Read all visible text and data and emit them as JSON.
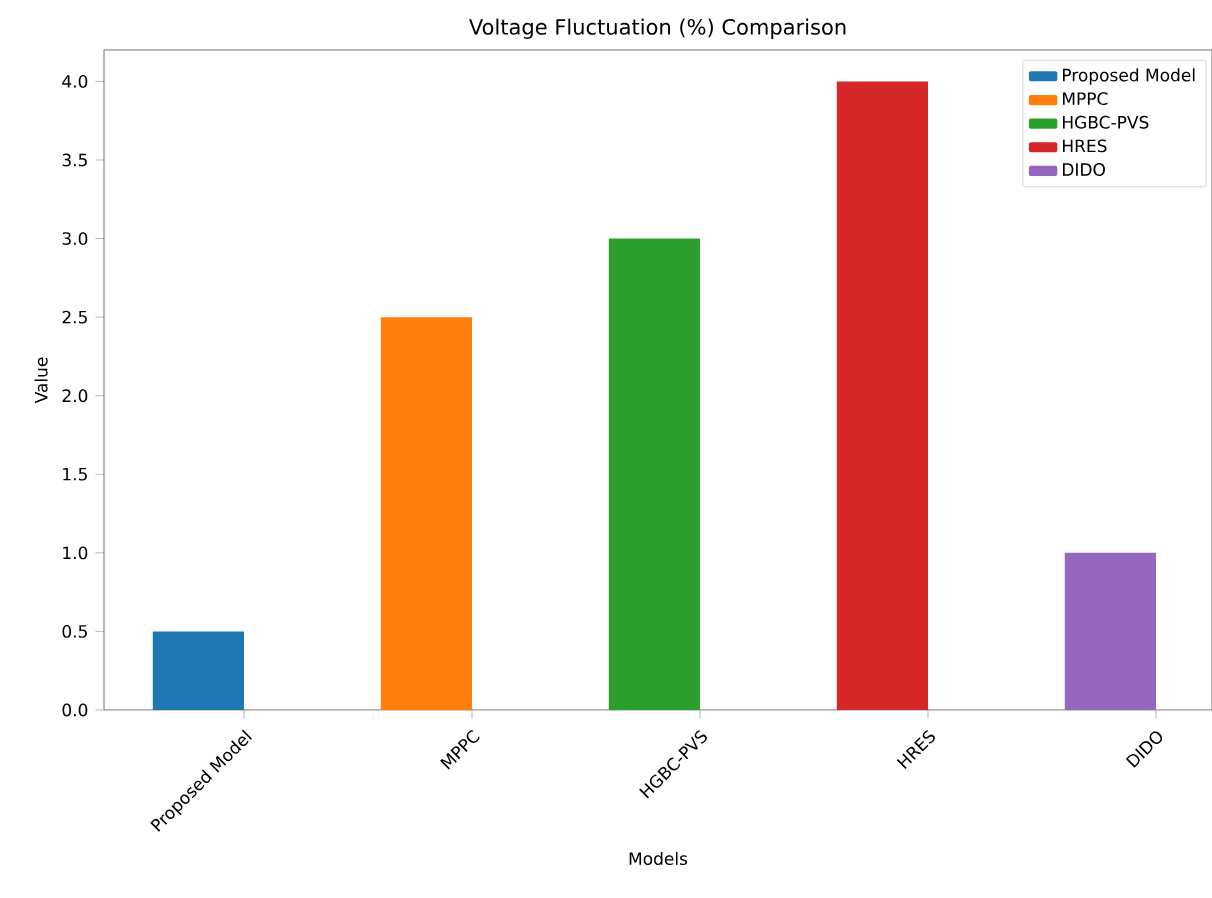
{
  "chart_data": {
    "type": "bar",
    "title": "Voltage Fluctuation (%) Comparison",
    "xlabel": "Models",
    "ylabel": "Value",
    "categories": [
      "Proposed Model",
      "MPPC",
      "HGBC-PVS",
      "HRES",
      "DIDO"
    ],
    "series": [
      {
        "name": "Proposed Model",
        "color": "#1f77b4",
        "values": [
          0.5,
          null,
          null,
          null,
          null
        ]
      },
      {
        "name": "MPPC",
        "color": "#ff7f0e",
        "values": [
          null,
          2.5,
          null,
          null,
          null
        ]
      },
      {
        "name": "HGBC-PVS",
        "color": "#2ca02c",
        "values": [
          null,
          null,
          3.0,
          null,
          null
        ]
      },
      {
        "name": "HRES",
        "color": "#d62728",
        "values": [
          null,
          null,
          null,
          4.0,
          null
        ]
      },
      {
        "name": "DIDO",
        "color": "#9467bd",
        "values": [
          null,
          null,
          null,
          null,
          1.0
        ]
      }
    ],
    "ylim": [
      0,
      4.2
    ],
    "yticks": [
      {
        "value": 0,
        "label": "0.0"
      },
      0.5,
      {
        "value": 1,
        "label": "1.0"
      },
      1.5,
      {
        "value": 2,
        "label": "2.0"
      },
      2.5,
      {
        "value": 3,
        "label": "3.0"
      },
      3.5,
      {
        "value": 4,
        "label": "4.0"
      }
    ],
    "legend": "top right"
  }
}
